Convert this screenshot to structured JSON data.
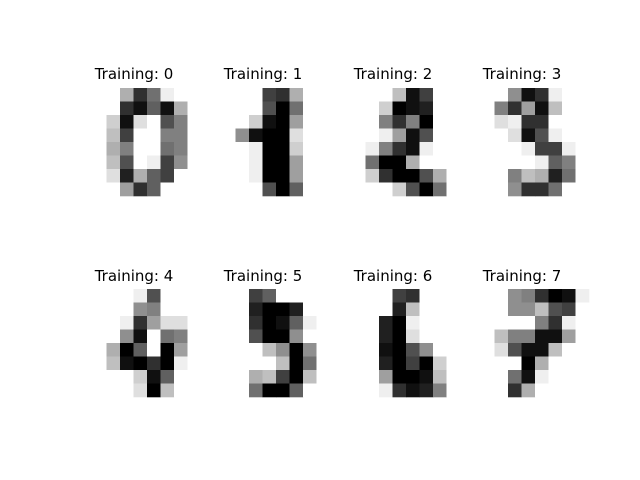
{
  "chart_data": {
    "type": "heatmap",
    "colormap": "gray_r",
    "value_range": [
      0,
      16
    ],
    "panels": [
      {
        "title": "Training: 0",
        "pixels": [
          [
            0,
            0,
            5,
            13,
            9,
            1,
            0,
            0
          ],
          [
            0,
            0,
            13,
            15,
            10,
            15,
            5,
            0
          ],
          [
            0,
            3,
            15,
            2,
            0,
            11,
            8,
            0
          ],
          [
            0,
            4,
            12,
            0,
            0,
            8,
            8,
            0
          ],
          [
            0,
            5,
            8,
            0,
            0,
            9,
            8,
            0
          ],
          [
            0,
            4,
            11,
            0,
            1,
            12,
            7,
            0
          ],
          [
            0,
            2,
            14,
            5,
            10,
            12,
            0,
            0
          ],
          [
            0,
            0,
            6,
            13,
            10,
            0,
            0,
            0
          ]
        ]
      },
      {
        "title": "Training: 1",
        "pixels": [
          [
            0,
            0,
            0,
            12,
            13,
            5,
            0,
            0
          ],
          [
            0,
            0,
            0,
            11,
            16,
            9,
            0,
            0
          ],
          [
            0,
            0,
            3,
            15,
            16,
            6,
            0,
            0
          ],
          [
            0,
            7,
            15,
            16,
            16,
            2,
            0,
            0
          ],
          [
            0,
            0,
            1,
            16,
            16,
            3,
            0,
            0
          ],
          [
            0,
            0,
            1,
            16,
            16,
            6,
            0,
            0
          ],
          [
            0,
            0,
            1,
            16,
            16,
            6,
            0,
            0
          ],
          [
            0,
            0,
            0,
            11,
            16,
            10,
            0,
            0
          ]
        ]
      },
      {
        "title": "Training: 2",
        "pixels": [
          [
            0,
            0,
            0,
            4,
            15,
            12,
            0,
            0
          ],
          [
            0,
            0,
            3,
            16,
            15,
            14,
            0,
            0
          ],
          [
            0,
            0,
            8,
            13,
            8,
            16,
            0,
            0
          ],
          [
            0,
            0,
            1,
            6,
            15,
            11,
            0,
            0
          ],
          [
            0,
            1,
            8,
            13,
            15,
            1,
            0,
            0
          ],
          [
            0,
            9,
            16,
            16,
            5,
            0,
            0,
            0
          ],
          [
            0,
            3,
            13,
            16,
            16,
            11,
            5,
            0
          ],
          [
            0,
            0,
            0,
            3,
            11,
            16,
            9,
            0
          ]
        ]
      },
      {
        "title": "Training: 3",
        "pixels": [
          [
            0,
            0,
            7,
            15,
            13,
            1,
            0,
            0
          ],
          [
            0,
            8,
            13,
            6,
            15,
            4,
            0,
            0
          ],
          [
            0,
            2,
            1,
            13,
            13,
            0,
            0,
            0
          ],
          [
            0,
            0,
            2,
            15,
            11,
            1,
            0,
            0
          ],
          [
            0,
            0,
            0,
            1,
            12,
            12,
            1,
            0
          ],
          [
            0,
            0,
            0,
            0,
            1,
            10,
            8,
            0
          ],
          [
            0,
            0,
            8,
            4,
            5,
            14,
            9,
            0
          ],
          [
            0,
            0,
            7,
            13,
            13,
            9,
            0,
            0
          ]
        ]
      },
      {
        "title": "Training: 4",
        "pixels": [
          [
            0,
            0,
            0,
            1,
            11,
            0,
            0,
            0
          ],
          [
            0,
            0,
            0,
            7,
            8,
            0,
            0,
            0
          ],
          [
            0,
            0,
            1,
            13,
            6,
            2,
            2,
            0
          ],
          [
            0,
            0,
            7,
            15,
            0,
            9,
            8,
            0
          ],
          [
            0,
            5,
            16,
            10,
            0,
            16,
            6,
            0
          ],
          [
            0,
            4,
            15,
            16,
            13,
            16,
            1,
            0
          ],
          [
            0,
            0,
            0,
            3,
            15,
            10,
            0,
            0
          ],
          [
            0,
            0,
            0,
            2,
            16,
            4,
            0,
            0
          ]
        ]
      },
      {
        "title": "Training: 5",
        "pixels": [
          [
            0,
            0,
            12,
            10,
            0,
            0,
            0,
            0
          ],
          [
            0,
            0,
            14,
            16,
            16,
            14,
            0,
            0
          ],
          [
            0,
            0,
            13,
            16,
            15,
            10,
            1,
            0
          ],
          [
            0,
            0,
            11,
            16,
            16,
            7,
            0,
            0
          ],
          [
            0,
            0,
            0,
            4,
            7,
            16,
            7,
            0
          ],
          [
            0,
            0,
            0,
            0,
            4,
            16,
            9,
            0
          ],
          [
            0,
            0,
            5,
            4,
            12,
            16,
            4,
            0
          ],
          [
            0,
            0,
            9,
            16,
            16,
            10,
            0,
            0
          ]
        ]
      },
      {
        "title": "Training: 6",
        "pixels": [
          [
            0,
            0,
            0,
            12,
            13,
            0,
            0,
            0
          ],
          [
            0,
            0,
            0,
            14,
            4,
            0,
            0,
            0
          ],
          [
            0,
            0,
            14,
            16,
            1,
            0,
            0,
            0
          ],
          [
            0,
            0,
            14,
            16,
            2,
            0,
            0,
            0
          ],
          [
            0,
            0,
            15,
            16,
            11,
            7,
            0,
            0
          ],
          [
            0,
            0,
            14,
            16,
            12,
            16,
            3,
            0
          ],
          [
            0,
            0,
            6,
            16,
            16,
            15,
            4,
            0
          ],
          [
            0,
            0,
            1,
            13,
            15,
            14,
            8,
            0
          ]
        ]
      },
      {
        "title": "Training: 7",
        "pixels": [
          [
            0,
            0,
            7,
            8,
            13,
            16,
            15,
            1
          ],
          [
            0,
            0,
            7,
            7,
            4,
            11,
            12,
            0
          ],
          [
            0,
            0,
            0,
            0,
            8,
            13,
            1,
            0
          ],
          [
            0,
            4,
            8,
            8,
            15,
            15,
            6,
            0
          ],
          [
            0,
            2,
            11,
            15,
            15,
            4,
            0,
            0
          ],
          [
            0,
            0,
            0,
            16,
            5,
            0,
            0,
            0
          ],
          [
            0,
            0,
            9,
            15,
            1,
            0,
            0,
            0
          ],
          [
            0,
            0,
            13,
            5,
            0,
            0,
            0,
            0
          ]
        ]
      }
    ]
  }
}
